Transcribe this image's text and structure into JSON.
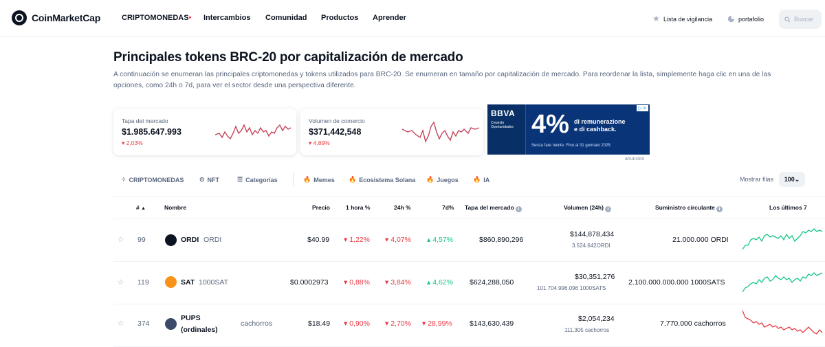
{
  "header": {
    "brand": "CoinMarketCap",
    "nav": [
      "CRIPTOMONEDAS",
      "Intercambios",
      "Comunidad",
      "Productos",
      "Aprender"
    ],
    "nav_dot": "•",
    "watchlist": "Lista de vigilancia",
    "portfolio": "portafolio",
    "search_placeholder": "Buscar"
  },
  "page": {
    "title": "Principales tokens BRC-20 por capitalización de mercado",
    "description": "A continuación se enumeran las principales criptomonedas y tokens utilizados para BRC-20. Se enumeran en tamaño por capitalización de mercado. Para reordenar la lista, simplemente haga clic en una de las opciones, como 24h o 7d, para ver el sector desde una perspectiva diferente."
  },
  "cards": [
    {
      "label": "Tapa del mercado",
      "value": "$1.985.647.993",
      "change": "2,03%",
      "trend": "down"
    },
    {
      "label": "Volumen de comercio",
      "value": "$371,442,548",
      "change": "4,89%",
      "trend": "down"
    }
  ],
  "ad": {
    "bank": "BBVA",
    "bank_sub": "Creando Oportunidades",
    "big": "4%",
    "text_line1": "di remunerazione",
    "text_line2": "e di cashback.",
    "footer": "Senza fare niente. Fino al 31 gennaio 2025.",
    "note": "anuncios"
  },
  "filters": {
    "items": [
      "CRIPTOMONEDAS",
      "NFT",
      "Categorías",
      "Memes",
      "Ecosistema Solana",
      "Juegos",
      "IA"
    ],
    "rows_label": "Mostrar filas",
    "rows_value": "100"
  },
  "table": {
    "headers": {
      "rank": "#",
      "name": "Nombre",
      "price": "Precio",
      "h1": "1 hora %",
      "h24": "24h %",
      "d7": "7d%",
      "mcap": "Tapa del mercado",
      "volume": "Volumen (24h)",
      "supply": "Suministro circulante",
      "last7": "Los últimos 7"
    },
    "rows": [
      {
        "rank": "99",
        "name": "ORDI",
        "symbol": "ORDI",
        "price": "$40.99",
        "h1": "1,22%",
        "h1_dir": "down",
        "h24": "4,07%",
        "h24_dir": "down",
        "d7": "4,57%",
        "d7_dir": "up",
        "mcap": "$860,890,296",
        "volume": "$144,878,434",
        "volume_sub": "3.524.642ORDI",
        "supply": "21.000.000 ORDI",
        "spark_color": "#16c784"
      },
      {
        "rank": "119",
        "name": "SAT",
        "symbol": "1000SAT",
        "price": "$0.0002973",
        "h1": "0,88%",
        "h1_dir": "down",
        "h24": "3,84%",
        "h24_dir": "down",
        "d7": "4,62%",
        "d7_dir": "up",
        "mcap": "$624,288,050",
        "volume": "$30,351,276",
        "volume_sub": "101.704.996.096 1000SATS",
        "supply": "2.100.000.000.000 1000SATS",
        "spark_color": "#16c784"
      },
      {
        "rank": "374",
        "name_line1": "PUPS",
        "name_line2": "(ordinales)",
        "symbol": "cachorros",
        "price": "$18.49",
        "h1": "0,90%",
        "h1_dir": "down",
        "h24": "2,70%",
        "h24_dir": "down",
        "d7": "28,99%",
        "d7_dir": "down",
        "mcap": "$143,630,439",
        "volume": "$2,054,234",
        "volume_sub": "111,305 cachorros",
        "supply": "7.770.000 cachorros",
        "spark_color": "#ea3943"
      }
    ]
  },
  "colors": {
    "up": "#16c784",
    "down": "#ea3943",
    "accent": "#3861fb"
  }
}
